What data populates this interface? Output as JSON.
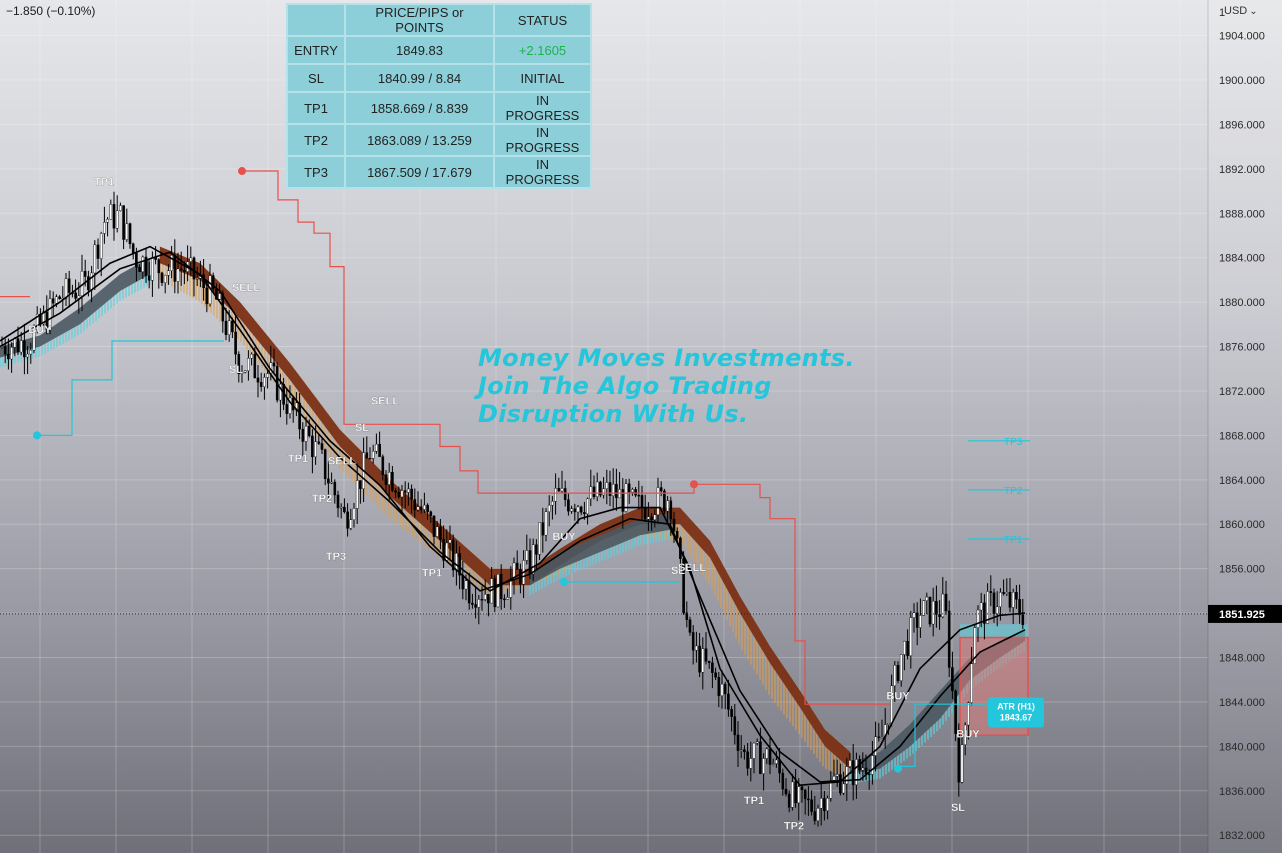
{
  "header": {
    "change": "−1.850 (−0.10%)",
    "currency": "USD",
    "currency_chevron": "⌄"
  },
  "watermark": {
    "lines": [
      "Money Moves Investments.",
      "Join The Algo Trading",
      "Disruption With Us."
    ]
  },
  "status_table": {
    "headers": [
      "",
      "PRICE/PIPS or POINTS",
      "STATUS"
    ],
    "rows": [
      {
        "label": "ENTRY",
        "price": "1849.83",
        "status": "+2.1605"
      },
      {
        "label": "SL",
        "price": "1840.99 / 8.84",
        "status": "INITIAL"
      },
      {
        "label": "TP1",
        "price": "1858.669 / 8.839",
        "status": "IN PROGRESS"
      },
      {
        "label": "TP2",
        "price": "1863.089 / 13.259",
        "status": "IN PROGRESS"
      },
      {
        "label": "TP3",
        "price": "1867.509 / 17.679",
        "status": "IN PROGRESS"
      }
    ]
  },
  "colors": {
    "accent": "#23c6da",
    "positive": "#1db34a",
    "sell": "#e8504c",
    "band_brown": "#7a2e14",
    "band_orange": "#e0a04a",
    "band_cyan": "#5fd0dc"
  },
  "chart_data": {
    "type": "candlestick",
    "price_axis": {
      "range": [
        1830.4,
        1907.2
      ],
      "ticks": [
        "1904.000",
        "1900.000",
        "1896.000",
        "1892.000",
        "1888.000",
        "1884.000",
        "1880.000",
        "1876.000",
        "1872.000",
        "1868.000",
        "1864.000",
        "1860.000",
        "1856.000",
        "1852.000",
        "1848.000",
        "1844.000",
        "1840.000",
        "1836.000",
        "1832.000"
      ],
      "partial_top_label": "1",
      "current_price": "1851.925",
      "current_price_value": 1851.925
    },
    "price_path": [
      [
        0,
        1876.0
      ],
      [
        30,
        1876.5
      ],
      [
        60,
        1880.5
      ],
      [
        85,
        1881.5
      ],
      [
        105,
        1887.5
      ],
      [
        120,
        1887.8
      ],
      [
        135,
        1884.0
      ],
      [
        160,
        1883.0
      ],
      [
        185,
        1883.0
      ],
      [
        215,
        1880.5
      ],
      [
        240,
        1874.5
      ],
      [
        270,
        1873.5
      ],
      [
        300,
        1869.0
      ],
      [
        320,
        1866.0
      ],
      [
        345,
        1860.5
      ],
      [
        370,
        1866.5
      ],
      [
        395,
        1864.0
      ],
      [
        420,
        1861.5
      ],
      [
        445,
        1858.0
      ],
      [
        470,
        1854.0
      ],
      [
        500,
        1854.0
      ],
      [
        530,
        1856.5
      ],
      [
        555,
        1862.5
      ],
      [
        580,
        1862.0
      ],
      [
        610,
        1863.0
      ],
      [
        640,
        1861.5
      ],
      [
        670,
        1862.5
      ],
      [
        690,
        1849.0
      ],
      [
        720,
        1845.5
      ],
      [
        745,
        1839.0
      ],
      [
        770,
        1839.0
      ],
      [
        795,
        1835.0
      ],
      [
        815,
        1834.5
      ],
      [
        835,
        1837.0
      ],
      [
        860,
        1838.0
      ],
      [
        880,
        1840.0
      ],
      [
        900,
        1848.0
      ],
      [
        920,
        1852.0
      ],
      [
        945,
        1852.5
      ],
      [
        960,
        1837.0
      ],
      [
        975,
        1851.5
      ],
      [
        1000,
        1853.5
      ],
      [
        1025,
        1851.9
      ]
    ],
    "bands": {
      "brown_upper": [
        [
          160,
          1885.0
        ],
        [
          200,
          1883.5
        ],
        [
          240,
          1880.0
        ],
        [
          290,
          1874.5
        ],
        [
          340,
          1868.5
        ],
        [
          390,
          1864.0
        ],
        [
          440,
          1860.0
        ],
        [
          490,
          1856.0
        ],
        [
          530,
          1856.0
        ],
        [
          560,
          1857.8
        ],
        [
          600,
          1860.0
        ],
        [
          640,
          1861.5
        ],
        [
          680,
          1861.5
        ],
        [
          710,
          1858.5
        ],
        [
          740,
          1853.5
        ],
        [
          770,
          1849.0
        ],
        [
          800,
          1845.0
        ],
        [
          825,
          1841.5
        ],
        [
          850,
          1839.5
        ]
      ],
      "brown_lower": [
        [
          160,
          1883.5
        ],
        [
          200,
          1882.0
        ],
        [
          240,
          1878.5
        ],
        [
          290,
          1873.0
        ],
        [
          340,
          1867.0
        ],
        [
          390,
          1862.5
        ],
        [
          440,
          1858.5
        ],
        [
          490,
          1854.5
        ],
        [
          530,
          1854.5
        ],
        [
          560,
          1856.3
        ],
        [
          600,
          1858.5
        ],
        [
          640,
          1860.0
        ],
        [
          680,
          1860.0
        ],
        [
          710,
          1857.0
        ],
        [
          740,
          1852.0
        ],
        [
          770,
          1847.5
        ],
        [
          800,
          1843.5
        ],
        [
          825,
          1840.0
        ],
        [
          850,
          1838.0
        ]
      ],
      "orange_lower": [
        [
          160,
          1882.0
        ],
        [
          200,
          1880.0
        ],
        [
          240,
          1876.5
        ],
        [
          290,
          1871.0
        ],
        [
          340,
          1865.0
        ],
        [
          390,
          1860.5
        ],
        [
          440,
          1857.0
        ],
        [
          490,
          1853.5
        ],
        [
          530,
          1854.5
        ],
        [
          560,
          1855.5
        ],
        [
          600,
          1858.0
        ],
        [
          640,
          1859.0
        ],
        [
          680,
          1858.5
        ],
        [
          710,
          1854.5
        ],
        [
          740,
          1849.0
        ],
        [
          770,
          1844.5
        ],
        [
          800,
          1841.0
        ],
        [
          825,
          1838.0
        ],
        [
          850,
          1837.0
        ]
      ],
      "cyan_dark": [
        {
          "upper": [
            [
              0,
              1876.0
            ],
            [
              40,
              1877.0
            ],
            [
              80,
              1879.5
            ],
            [
              120,
              1882.5
            ],
            [
              150,
              1884.0
            ]
          ],
          "lower": [
            [
              0,
              1875.0
            ],
            [
              40,
              1876.0
            ],
            [
              80,
              1878.0
            ],
            [
              120,
              1881.0
            ],
            [
              150,
              1882.5
            ]
          ]
        },
        {
          "upper": [
            [
              530,
              1855.5
            ],
            [
              560,
              1857.5
            ],
            [
              600,
              1859.0
            ],
            [
              640,
              1860.5
            ],
            [
              670,
              1861.0
            ]
          ],
          "lower": [
            [
              530,
              1854.5
            ],
            [
              560,
              1856.0
            ],
            [
              600,
              1857.5
            ],
            [
              640,
              1859.0
            ],
            [
              670,
              1859.5
            ]
          ]
        },
        {
          "upper": [
            [
              850,
              1838.5
            ],
            [
              880,
              1839.5
            ],
            [
              910,
              1842.0
            ],
            [
              940,
              1845.0
            ],
            [
              970,
              1848.0
            ],
            [
              1000,
              1849.5
            ],
            [
              1025,
              1850.5
            ]
          ],
          "lower": [
            [
              850,
              1837.5
            ],
            [
              880,
              1838.0
            ],
            [
              910,
              1840.0
            ],
            [
              940,
              1842.5
            ],
            [
              970,
              1846.0
            ],
            [
              1000,
              1848.0
            ],
            [
              1025,
              1849.5
            ]
          ]
        }
      ]
    },
    "black_lines": [
      [
        [
          0,
          1876.5
        ],
        [
          60,
          1880.0
        ],
        [
          110,
          1883.5
        ],
        [
          150,
          1885.0
        ],
        [
          200,
          1882.5
        ],
        [
          240,
          1877.5
        ],
        [
          290,
          1871.0
        ],
        [
          340,
          1866.0
        ],
        [
          390,
          1862.0
        ],
        [
          440,
          1857.5
        ],
        [
          490,
          1854.0
        ],
        [
          540,
          1856.5
        ],
        [
          580,
          1860.5
        ],
        [
          620,
          1861.5
        ],
        [
          660,
          1861.5
        ],
        [
          690,
          1856.0
        ],
        [
          720,
          1847.0
        ],
        [
          760,
          1841.0
        ],
        [
          800,
          1836.5
        ],
        [
          840,
          1836.8
        ],
        [
          880,
          1840.0
        ],
        [
          920,
          1847.0
        ],
        [
          960,
          1850.5
        ],
        [
          1000,
          1851.8
        ],
        [
          1025,
          1852.0
        ]
      ],
      [
        [
          0,
          1876.0
        ],
        [
          60,
          1879.0
        ],
        [
          120,
          1883.0
        ],
        [
          170,
          1884.5
        ],
        [
          220,
          1881.0
        ],
        [
          270,
          1874.0
        ],
        [
          330,
          1867.5
        ],
        [
          380,
          1863.5
        ],
        [
          430,
          1858.0
        ],
        [
          480,
          1854.0
        ],
        [
          530,
          1855.5
        ],
        [
          580,
          1858.5
        ],
        [
          630,
          1860.5
        ],
        [
          670,
          1860.0
        ],
        [
          700,
          1853.5
        ],
        [
          740,
          1845.0
        ],
        [
          780,
          1839.5
        ],
        [
          820,
          1836.8
        ],
        [
          860,
          1837.0
        ],
        [
          900,
          1840.0
        ],
        [
          940,
          1844.5
        ],
        [
          980,
          1848.5
        ],
        [
          1025,
          1850.5
        ]
      ]
    ],
    "red_step_line": [
      [
        240,
        1891.8
      ],
      [
        278,
        1891.8
      ],
      [
        278,
        1889.2
      ],
      [
        298,
        1889.2
      ],
      [
        298,
        1887.2
      ],
      [
        314,
        1887.2
      ],
      [
        314,
        1886.2
      ],
      [
        330,
        1886.2
      ],
      [
        330,
        1883.2
      ],
      [
        344,
        1883.2
      ],
      [
        344,
        1869.0
      ],
      [
        440,
        1869.0
      ],
      [
        440,
        1867.0
      ],
      [
        460,
        1867.0
      ],
      [
        460,
        1864.8
      ],
      [
        478,
        1864.8
      ],
      [
        478,
        1862.8
      ],
      [
        560,
        1862.8
      ],
      [
        694,
        1862.8
      ],
      [
        694,
        1863.6
      ],
      [
        760,
        1863.6
      ],
      [
        760,
        1862.4
      ],
      [
        770,
        1862.4
      ],
      [
        770,
        1860.5
      ],
      [
        795,
        1860.5
      ],
      [
        795,
        1849.5
      ],
      [
        805,
        1849.5
      ],
      [
        805,
        1843.8
      ],
      [
        890,
        1843.8
      ]
    ],
    "red_step_line_left": [
      [
        0,
        1880.5
      ],
      [
        30,
        1880.5
      ]
    ],
    "cyan_step_line": [
      [
        37,
        1868.0
      ],
      [
        72,
        1868.0
      ],
      [
        72,
        1873.0
      ],
      [
        112,
        1873.0
      ],
      [
        112,
        1876.5
      ],
      [
        224,
        1876.5
      ]
    ],
    "cyan_step_line_mid": [
      [
        564,
        1854.8
      ],
      [
        680,
        1854.8
      ]
    ],
    "cyan_step_line_right": [
      [
        900,
        1838.2
      ],
      [
        915,
        1838.2
      ],
      [
        915,
        1843.8
      ],
      [
        990,
        1843.8
      ]
    ],
    "entry_zone": {
      "x": [
        960,
        1028
      ],
      "top": 1849.8,
      "bottom": 1841.0
    },
    "tp_lines": [
      {
        "label": "TP3",
        "price": 1867.51
      },
      {
        "label": "TP2",
        "price": 1863.09
      },
      {
        "label": "TP1",
        "price": 1858.67
      }
    ],
    "atr_label": {
      "title": "ATR (H1)",
      "value": "1843.67"
    },
    "dot_markers": [
      {
        "x": 242,
        "price": 1891.8,
        "color": "#e8504c"
      },
      {
        "x": 694,
        "price": 1863.6,
        "color": "#e8504c"
      },
      {
        "x": 37,
        "price": 1868.0,
        "color": "#23c6da"
      },
      {
        "x": 564,
        "price": 1854.8,
        "color": "#23c6da"
      },
      {
        "x": 898,
        "price": 1838.0,
        "color": "#23c6da"
      }
    ],
    "signals": [
      {
        "text": "TP1",
        "x": 104,
        "price": 1890.5
      },
      {
        "text": "BUY",
        "x": 40,
        "price": 1877.2
      },
      {
        "text": "SELL",
        "x": 246,
        "price": 1881.0
      },
      {
        "text": "SL",
        "x": 236,
        "price": 1873.6
      },
      {
        "text": "SELL",
        "x": 385,
        "price": 1870.8
      },
      {
        "text": "SL",
        "x": 362,
        "price": 1868.4
      },
      {
        "text": "TP1",
        "x": 298,
        "price": 1865.6
      },
      {
        "text": "SELL",
        "x": 342,
        "price": 1865.4
      },
      {
        "text": "TP2",
        "x": 322,
        "price": 1862.0
      },
      {
        "text": "TP3",
        "x": 336,
        "price": 1856.8
      },
      {
        "text": "TP1",
        "x": 432,
        "price": 1855.3
      },
      {
        "text": "BUY",
        "x": 564,
        "price": 1858.6
      },
      {
        "text": "SL",
        "x": 678,
        "price": 1855.5
      },
      {
        "text": "SELL",
        "x": 692,
        "price": 1855.8
      },
      {
        "text": "BUY",
        "x": 898,
        "price": 1844.2
      },
      {
        "text": "BUY",
        "x": 968,
        "price": 1840.8
      },
      {
        "text": "TP1",
        "x": 754,
        "price": 1834.8
      },
      {
        "text": "TP2",
        "x": 794,
        "price": 1832.5
      },
      {
        "text": "SL",
        "x": 958,
        "price": 1834.2
      }
    ]
  }
}
